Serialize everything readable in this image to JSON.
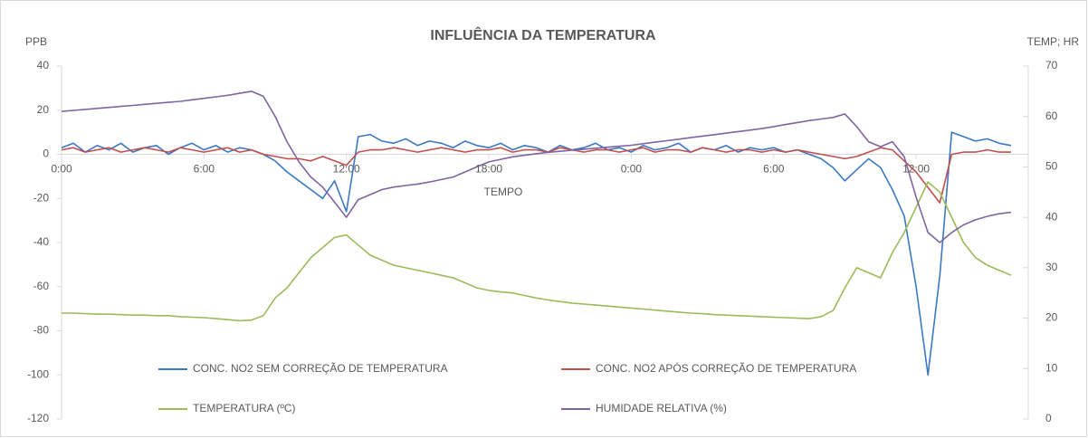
{
  "chart_data": {
    "type": "line",
    "title": "INFLUÊNCIA DA TEMPERATURA",
    "y_label": "PPB",
    "y2_label": "TEMP; HR",
    "x_label": "TEMPO",
    "legend": "bottom",
    "categories": [
      "0:00",
      null,
      null,
      null,
      null,
      null,
      null,
      null,
      null,
      null,
      null,
      null,
      "6:00",
      null,
      null,
      null,
      null,
      null,
      null,
      null,
      null,
      null,
      null,
      null,
      "12:00",
      null,
      null,
      null,
      null,
      null,
      null,
      null,
      null,
      null,
      null,
      null,
      "18:00",
      null,
      null,
      null,
      null,
      null,
      null,
      null,
      null,
      null,
      null,
      null,
      "0:00",
      null,
      null,
      null,
      null,
      null,
      null,
      null,
      null,
      null,
      null,
      null,
      "6:00",
      null,
      null,
      null,
      null,
      null,
      null,
      null,
      null,
      null,
      null,
      null,
      "12:00",
      null,
      null,
      null,
      null,
      null,
      null,
      null,
      null
    ],
    "ylim": [
      -120,
      40
    ],
    "yticks": [
      -120,
      -100,
      -80,
      -60,
      -40,
      -20,
      0,
      20,
      40
    ],
    "y2lim": [
      0,
      70
    ],
    "y2ticks": [
      0,
      10,
      20,
      30,
      40,
      50,
      60,
      70
    ],
    "series": [
      {
        "name": "CONC. NO2 SEM CORREÇÃO DE TEMPERATURA",
        "color": "#3b78c4",
        "values": [
          3,
          5,
          1,
          4,
          2,
          5,
          1,
          3,
          4,
          0,
          3,
          5,
          2,
          4,
          1,
          3,
          2,
          0,
          -3,
          -8,
          -12,
          -16,
          -20,
          -12,
          -26,
          8,
          9,
          6,
          5,
          7,
          4,
          6,
          5,
          3,
          6,
          4,
          3,
          5,
          2,
          4,
          3,
          1,
          4,
          2,
          3,
          5,
          2,
          3,
          1,
          4,
          2,
          3,
          5,
          1,
          3,
          2,
          4,
          1,
          3,
          2,
          3,
          1,
          2,
          0,
          -2,
          -6,
          -12,
          -7,
          -2,
          -6,
          -16,
          -28,
          -60,
          -100,
          -55,
          10,
          8,
          6,
          7,
          5,
          4
        ]
      },
      {
        "name": "CONC. NO2 APÓS CORREÇÃO DE TEMPERATURA",
        "color": "#c0504d",
        "values": [
          2,
          3,
          1,
          2,
          3,
          1,
          2,
          3,
          2,
          1,
          3,
          2,
          1,
          2,
          3,
          1,
          2,
          0,
          -1,
          -2,
          -2,
          -3,
          -1,
          -3,
          -5,
          1,
          2,
          2,
          3,
          2,
          1,
          2,
          3,
          2,
          1,
          2,
          2,
          3,
          1,
          2,
          2,
          1,
          3,
          2,
          1,
          2,
          2,
          1,
          2,
          3,
          1,
          2,
          2,
          1,
          3,
          2,
          1,
          2,
          2,
          1,
          2,
          1,
          2,
          1,
          0,
          -1,
          -2,
          -1,
          1,
          3,
          2,
          -3,
          -8,
          -15,
          -22,
          0,
          1,
          1,
          2,
          1,
          1
        ]
      },
      {
        "name": "TEMPERATURA (ºC)",
        "color": "#9bbb59",
        "axis": "y2",
        "values": [
          21,
          21,
          20.9,
          20.8,
          20.8,
          20.7,
          20.6,
          20.6,
          20.5,
          20.5,
          20.3,
          20.2,
          20.1,
          19.9,
          19.7,
          19.5,
          19.6,
          20.5,
          24,
          26,
          29,
          32,
          34,
          36,
          36.5,
          34.5,
          32.5,
          31.5,
          30.5,
          30,
          29.5,
          29,
          28.5,
          28,
          27,
          26,
          25.5,
          25.2,
          25,
          24.5,
          24,
          23.6,
          23.3,
          23,
          22.8,
          22.6,
          22.4,
          22.2,
          22,
          21.8,
          21.6,
          21.4,
          21.2,
          21,
          20.9,
          20.7,
          20.6,
          20.5,
          20.4,
          20.3,
          20.2,
          20.1,
          20,
          19.9,
          20.3,
          21.5,
          26,
          30,
          29,
          28,
          33,
          37,
          42,
          47,
          45,
          40,
          35,
          32,
          30.5,
          29.5,
          28.5
        ]
      },
      {
        "name": "HUMIDADE RELATIVA (%)",
        "color": "#8064a2",
        "axis": "y2",
        "values": [
          61,
          61.2,
          61.4,
          61.6,
          61.8,
          62,
          62.2,
          62.4,
          62.6,
          62.8,
          63,
          63.3,
          63.6,
          63.9,
          64.2,
          64.6,
          65,
          64,
          60,
          55,
          51,
          48,
          46,
          43,
          40,
          43.5,
          44.5,
          45.5,
          46,
          46.3,
          46.6,
          47,
          47.5,
          48,
          49,
          50,
          51,
          51.5,
          52,
          52.3,
          52.6,
          52.9,
          53.1,
          53.3,
          53.5,
          53.7,
          53.9,
          54.1,
          54.3,
          54.6,
          54.9,
          55.2,
          55.5,
          55.8,
          56.1,
          56.4,
          56.7,
          57,
          57.3,
          57.6,
          58,
          58.4,
          58.8,
          59.2,
          59.5,
          59.8,
          60.5,
          58,
          55,
          54,
          55,
          52,
          44,
          37,
          35,
          37,
          38.5,
          39.5,
          40.2,
          40.7,
          41
        ]
      }
    ]
  }
}
